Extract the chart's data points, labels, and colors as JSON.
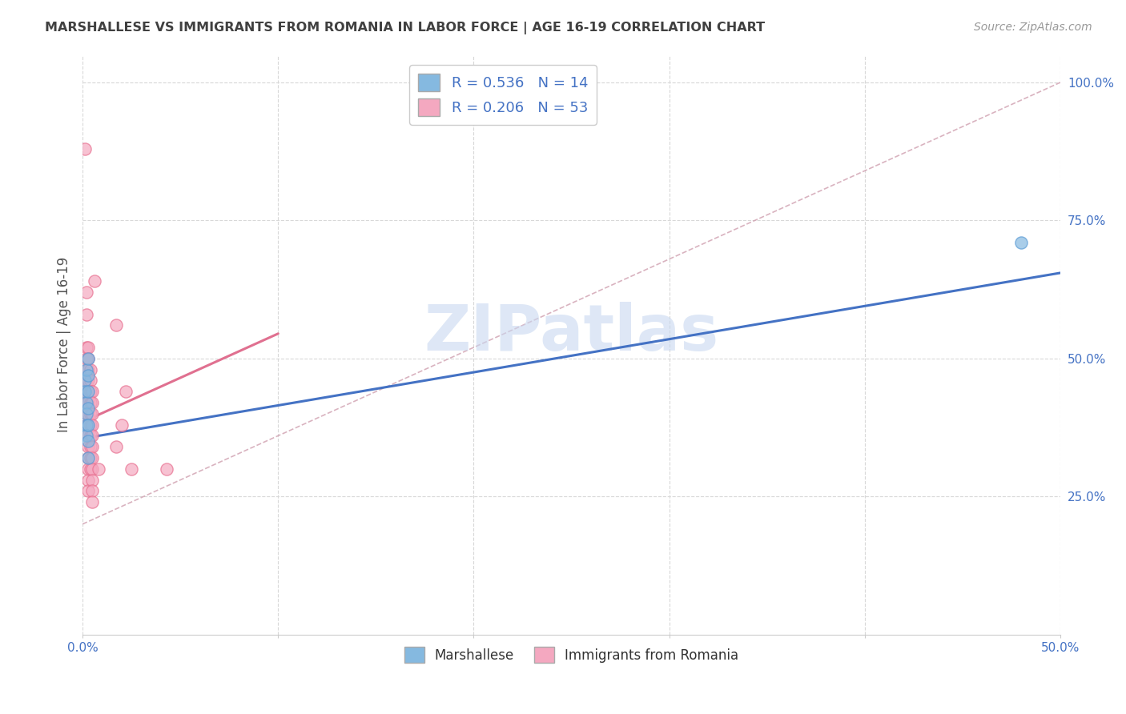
{
  "title": "MARSHALLESE VS IMMIGRANTS FROM ROMANIA IN LABOR FORCE | AGE 16-19 CORRELATION CHART",
  "source": "Source: ZipAtlas.com",
  "xmin": 0.0,
  "xmax": 0.5,
  "ymin": 0.0,
  "ymax": 1.05,
  "ylabel": "In Labor Force | Age 16-19",
  "marshallese_points": [
    [
      0.001,
      0.46
    ],
    [
      0.001,
      0.44
    ],
    [
      0.002,
      0.48
    ],
    [
      0.002,
      0.42
    ],
    [
      0.002,
      0.4
    ],
    [
      0.002,
      0.38
    ],
    [
      0.002,
      0.36
    ],
    [
      0.003,
      0.5
    ],
    [
      0.003,
      0.47
    ],
    [
      0.003,
      0.44
    ],
    [
      0.003,
      0.41
    ],
    [
      0.003,
      0.38
    ],
    [
      0.003,
      0.35
    ],
    [
      0.003,
      0.32
    ],
    [
      0.48,
      0.71
    ]
  ],
  "romania_points": [
    [
      0.001,
      0.88
    ],
    [
      0.002,
      0.62
    ],
    [
      0.002,
      0.58
    ],
    [
      0.002,
      0.52
    ],
    [
      0.002,
      0.5
    ],
    [
      0.002,
      0.48
    ],
    [
      0.002,
      0.46
    ],
    [
      0.002,
      0.44
    ],
    [
      0.002,
      0.42
    ],
    [
      0.002,
      0.4
    ],
    [
      0.003,
      0.52
    ],
    [
      0.003,
      0.5
    ],
    [
      0.003,
      0.48
    ],
    [
      0.003,
      0.46
    ],
    [
      0.003,
      0.44
    ],
    [
      0.003,
      0.42
    ],
    [
      0.003,
      0.4
    ],
    [
      0.003,
      0.38
    ],
    [
      0.003,
      0.36
    ],
    [
      0.003,
      0.34
    ],
    [
      0.003,
      0.32
    ],
    [
      0.003,
      0.3
    ],
    [
      0.003,
      0.28
    ],
    [
      0.003,
      0.26
    ],
    [
      0.004,
      0.48
    ],
    [
      0.004,
      0.46
    ],
    [
      0.004,
      0.44
    ],
    [
      0.004,
      0.42
    ],
    [
      0.004,
      0.4
    ],
    [
      0.004,
      0.38
    ],
    [
      0.004,
      0.36
    ],
    [
      0.004,
      0.34
    ],
    [
      0.004,
      0.32
    ],
    [
      0.004,
      0.3
    ],
    [
      0.005,
      0.44
    ],
    [
      0.005,
      0.42
    ],
    [
      0.005,
      0.4
    ],
    [
      0.005,
      0.38
    ],
    [
      0.005,
      0.36
    ],
    [
      0.005,
      0.34
    ],
    [
      0.005,
      0.32
    ],
    [
      0.005,
      0.3
    ],
    [
      0.005,
      0.28
    ],
    [
      0.005,
      0.26
    ],
    [
      0.005,
      0.24
    ],
    [
      0.006,
      0.64
    ],
    [
      0.008,
      0.3
    ],
    [
      0.017,
      0.56
    ],
    [
      0.017,
      0.34
    ],
    [
      0.02,
      0.38
    ],
    [
      0.022,
      0.44
    ],
    [
      0.025,
      0.3
    ],
    [
      0.043,
      0.3
    ]
  ],
  "marshallese_line_x": [
    0.0,
    0.5
  ],
  "marshallese_line_y": [
    0.355,
    0.655
  ],
  "romania_line_x": [
    0.0,
    0.1
  ],
  "romania_line_y": [
    0.385,
    0.545
  ],
  "diag_line_x": [
    0.0,
    0.5
  ],
  "diag_line_y": [
    0.2,
    1.0
  ],
  "marshallese_color": "#85b9e0",
  "marshallese_edge": "#5b9bd5",
  "romania_color": "#f4a8c0",
  "romania_edge": "#e87090",
  "marshallese_line_color": "#4472c4",
  "romania_line_color": "#e07090",
  "diag_line_color": "#d0a0b0",
  "watermark_text": "ZIPatlas",
  "watermark_color": "#c8d8f0",
  "bg_color": "#ffffff",
  "grid_color": "#d8d8d8",
  "title_color": "#404040",
  "axis_label_color": "#4472c4",
  "ylabel_color": "#555555"
}
